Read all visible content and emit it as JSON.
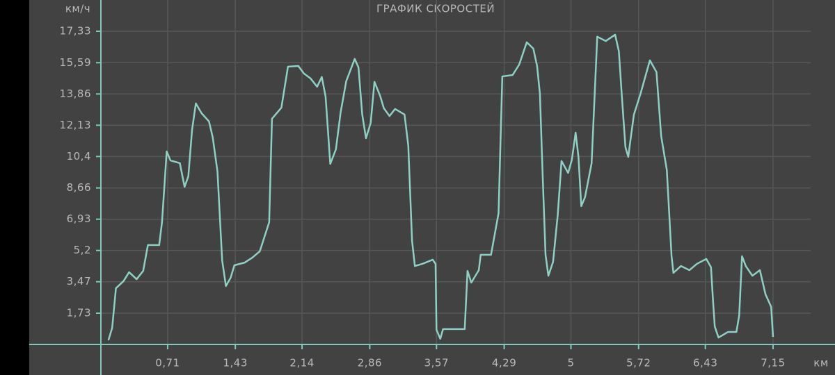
{
  "chart_data": {
    "type": "line",
    "title": "ГРАФИК СКОРОСТЕЙ",
    "y_label": "км/ч",
    "x_label": "км",
    "x": [
      0.08,
      0.12,
      0.16,
      0.24,
      0.3,
      0.38,
      0.45,
      0.5,
      0.62,
      0.65,
      0.7,
      0.74,
      0.84,
      0.89,
      0.93,
      0.97,
      1.01,
      1.07,
      1.15,
      1.19,
      1.24,
      1.29,
      1.33,
      1.38,
      1.42,
      1.53,
      1.61,
      1.69,
      1.79,
      1.82,
      1.92,
      1.99,
      2.1,
      2.16,
      2.23,
      2.3,
      2.35,
      2.39,
      2.44,
      2.5,
      2.55,
      2.61,
      2.7,
      2.74,
      2.78,
      2.82,
      2.87,
      2.91,
      2.97,
      3.01,
      3.07,
      3.13,
      3.23,
      3.27,
      3.31,
      3.34,
      3.42,
      3.53,
      3.56,
      3.57,
      3.61,
      3.64,
      3.87,
      3.9,
      3.94,
      4.02,
      4.04,
      4.15,
      4.23,
      4.27,
      4.38,
      4.45,
      4.53,
      4.6,
      4.64,
      4.67,
      4.7,
      4.73,
      4.76,
      4.81,
      4.86,
      4.9,
      4.97,
      5.01,
      5.05,
      5.08,
      5.11,
      5.15,
      5.22,
      5.28,
      5.37,
      5.47,
      5.51,
      5.54,
      5.58,
      5.61,
      5.63,
      5.67,
      5.74,
      5.84,
      5.91,
      5.96,
      6.02,
      6.07,
      6.09,
      6.17,
      6.26,
      6.34,
      6.44,
      6.49,
      6.51,
      6.53,
      6.57,
      6.67,
      6.76,
      6.79,
      6.82,
      6.86,
      6.93,
      7.01,
      7.07,
      7.13,
      7.15
    ],
    "series": [
      {
        "color": "#8fd0c5",
        "values": [
          0.23,
          0.92,
          3.11,
          3.5,
          4.0,
          3.61,
          4.07,
          5.5,
          5.5,
          6.76,
          10.68,
          10.18,
          10.03,
          8.72,
          9.3,
          11.88,
          13.34,
          12.8,
          12.34,
          11.45,
          9.57,
          4.65,
          3.23,
          3.69,
          4.38,
          4.53,
          4.8,
          5.15,
          6.76,
          12.49,
          13.1,
          15.37,
          15.41,
          14.99,
          14.72,
          14.26,
          14.8,
          13.72,
          9.99,
          10.8,
          12.84,
          14.57,
          15.8,
          15.33,
          12.72,
          11.41,
          12.26,
          14.53,
          13.76,
          13.07,
          12.64,
          13.03,
          12.72,
          10.99,
          5.73,
          4.34,
          4.46,
          4.69,
          4.46,
          0.81,
          0.31,
          0.85,
          0.85,
          4.07,
          3.42,
          4.11,
          4.96,
          4.96,
          7.26,
          14.83,
          14.91,
          15.49,
          16.72,
          16.37,
          15.41,
          13.87,
          9.26,
          4.96,
          3.8,
          4.57,
          7.19,
          10.15,
          9.49,
          10.22,
          11.72,
          10.38,
          7.65,
          8.15,
          10.03,
          17.03,
          16.79,
          17.14,
          16.22,
          13.87,
          10.91,
          10.38,
          11.18,
          12.72,
          13.87,
          15.72,
          15.07,
          11.53,
          9.65,
          4.92,
          3.96,
          4.34,
          4.11,
          4.46,
          4.73,
          4.27,
          2.54,
          1.0,
          0.38,
          0.69,
          0.69,
          1.61,
          4.88,
          4.34,
          3.8,
          4.11,
          2.77,
          2.08,
          0.42
        ]
      }
    ],
    "xlim": [
      0,
      7.55
    ],
    "ylim": [
      0,
      17.33
    ],
    "xticks": [
      {
        "value": 0.71,
        "label": "0,71"
      },
      {
        "value": 1.43,
        "label": "1,43"
      },
      {
        "value": 2.14,
        "label": "2,14"
      },
      {
        "value": 2.86,
        "label": "2,86"
      },
      {
        "value": 3.57,
        "label": "3,57"
      },
      {
        "value": 4.29,
        "label": "4,29"
      },
      5,
      {
        "value": 5.72,
        "label": "5,72"
      },
      {
        "value": 6.43,
        "label": "6,43"
      },
      {
        "value": 7.15,
        "label": "7,15"
      }
    ],
    "yticks": [
      {
        "value": 1.73,
        "label": "1,73"
      },
      {
        "value": 3.47,
        "label": "3,47"
      },
      {
        "value": 5.2,
        "label": "5,2"
      },
      {
        "value": 6.93,
        "label": "6,93"
      },
      {
        "value": 8.66,
        "label": "8,66"
      },
      {
        "value": 10.4,
        "label": "10,4"
      },
      {
        "value": 12.13,
        "label": "12,13"
      },
      {
        "value": 13.86,
        "label": "13,86"
      },
      {
        "value": 15.59,
        "label": "15,59"
      },
      {
        "value": 17.33,
        "label": "17,33"
      }
    ],
    "grid": true
  }
}
